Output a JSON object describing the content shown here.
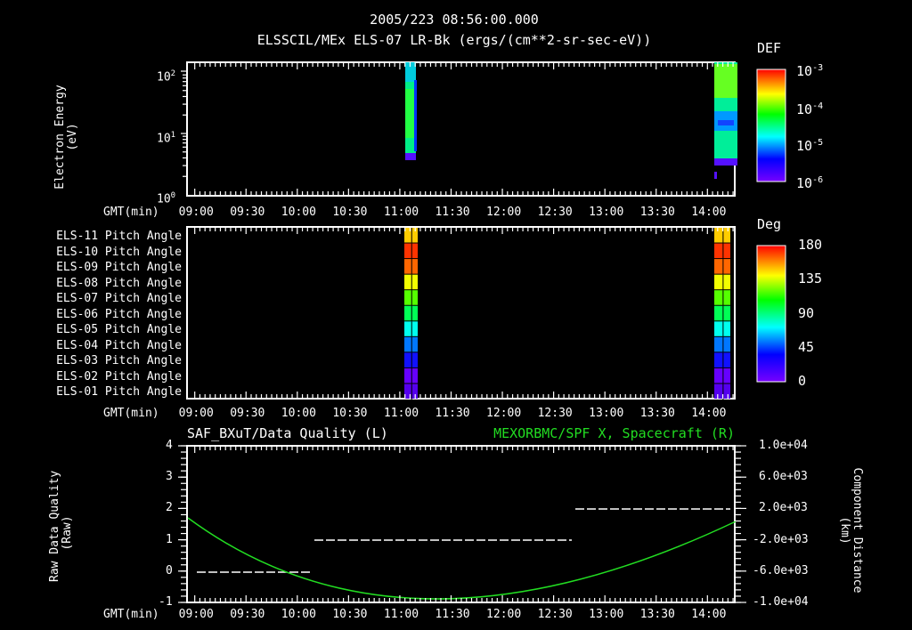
{
  "header": {
    "datetime": "2005/223 08:56:00.000",
    "subtitle": "ELSSCIL/MEx ELS-07 LR-Bk  (ergs/(cm**2-sr-sec-eV))"
  },
  "time_axis": {
    "label": "GMT(min)",
    "ticks": [
      "09:00",
      "09:30",
      "10:00",
      "10:30",
      "11:00",
      "11:30",
      "12:00",
      "12:30",
      "13:00",
      "13:30",
      "14:00"
    ]
  },
  "panel1": {
    "ylabel_line1": "Electron Energy",
    "ylabel_line2": "(eV)",
    "yticks": [
      {
        "base": "10",
        "exp": "2"
      },
      {
        "base": "10",
        "exp": "1"
      },
      {
        "base": "10",
        "exp": "0"
      }
    ],
    "colorbar": {
      "title": "DEF",
      "ticks": [
        {
          "base": "10",
          "exp": "-3"
        },
        {
          "base": "10",
          "exp": "-4"
        },
        {
          "base": "10",
          "exp": "-5"
        },
        {
          "base": "10",
          "exp": "-6"
        }
      ]
    }
  },
  "panel2": {
    "row_labels": [
      "ELS-11 Pitch Angle",
      "ELS-10 Pitch Angle",
      "ELS-09 Pitch Angle",
      "ELS-08 Pitch Angle",
      "ELS-07 Pitch Angle",
      "ELS-06 Pitch Angle",
      "ELS-05 Pitch Angle",
      "ELS-04 Pitch Angle",
      "ELS-03 Pitch Angle",
      "ELS-02 Pitch Angle",
      "ELS-01 Pitch Angle"
    ],
    "row_colors": [
      "#ffcc00",
      "#ff3300",
      "#ff6600",
      "#f2ff00",
      "#55ff00",
      "#00ff55",
      "#00ffee",
      "#0077ff",
      "#1111ff",
      "#6600ff",
      "#5500ee"
    ],
    "colorbar": {
      "title": "Deg",
      "ticks": [
        "180",
        "135",
        "90",
        "45",
        "0"
      ]
    }
  },
  "panel3": {
    "left_title": "SAF_BXuT/Data Quality (L)",
    "right_title": "MEXORBMC/SPF X, Spacecraft (R)",
    "right_title_color": "#22dd22",
    "ylabel_left_line1": "Raw Data Quality",
    "ylabel_left_line2": "(Raw)",
    "yticks_left": [
      "4",
      "3",
      "2",
      "1",
      "0",
      "-1"
    ],
    "ylabel_right_line1": "Component Distance",
    "ylabel_right_line2": "(km)",
    "yticks_right": [
      "1.0e+04",
      "6.0e+03",
      "2.0e+03",
      "-2.0e+03",
      "-6.0e+03",
      "-1.0e+04"
    ]
  },
  "chart_data": [
    {
      "type": "heatmap",
      "title": "ELSSCIL/MEx ELS-07 LR-Bk (ergs/(cm**2-sr-sec-eV))",
      "xlabel": "GMT(min)",
      "ylabel": "Electron Energy (eV)",
      "yscale": "log",
      "ylim": [
        1,
        150
      ],
      "x_range": [
        "08:56",
        "14:16"
      ],
      "colorbar": {
        "label": "DEF",
        "scale": "log",
        "range": [
          1e-06,
          0.001
        ]
      },
      "data_intervals": [
        {
          "start": "11:03",
          "end": "11:09",
          "energy_range_eV": [
            3,
            150
          ],
          "dominant_DEF": 5e-05
        },
        {
          "start": "14:00",
          "end": "14:12",
          "energy_range_eV": [
            3,
            150
          ],
          "dominant_DEF": 0.0001
        }
      ]
    },
    {
      "type": "heatmap",
      "title": "ELS Pitch Angle",
      "xlabel": "GMT(min)",
      "categories": [
        "ELS-11",
        "ELS-10",
        "ELS-09",
        "ELS-08",
        "ELS-07",
        "ELS-06",
        "ELS-05",
        "ELS-04",
        "ELS-03",
        "ELS-02",
        "ELS-01"
      ],
      "colorbar": {
        "label": "Deg",
        "range": [
          0,
          180
        ]
      },
      "data_intervals": [
        {
          "start": "11:03",
          "end": "11:09",
          "values_deg": [
            150,
            170,
            160,
            135,
            110,
            95,
            75,
            55,
            35,
            20,
            15
          ]
        },
        {
          "start": "14:00",
          "end": "14:12",
          "values_deg": [
            150,
            170,
            160,
            135,
            110,
            95,
            75,
            55,
            35,
            20,
            15
          ]
        }
      ]
    },
    {
      "type": "line",
      "title": "SAF_BXuT/Data Quality (L) ; MEXORBMC/SPF X, Spacecraft (R)",
      "xlabel": "GMT(min)",
      "ylabel": "Raw Data Quality (Raw)",
      "ylim": [
        -1,
        4
      ],
      "y2label": "Component Distance (km)",
      "y2lim": [
        -10000,
        10000
      ],
      "series": [
        {
          "name": "Data Quality (L)",
          "axis": "left",
          "color": "#ffffff",
          "style": "dashed",
          "points": [
            [
              "09:01",
              0
            ],
            [
              "10:07",
              0
            ],
            [
              "10:08",
              1
            ],
            [
              "12:40",
              1
            ],
            [
              "12:41",
              2
            ],
            [
              "14:12",
              2
            ]
          ]
        },
        {
          "name": "SPF X Spacecraft (R)",
          "axis": "right",
          "color": "#22dd22",
          "style": "solid",
          "points": [
            [
              "08:56",
              400
            ],
            [
              "09:15",
              -2400
            ],
            [
              "09:30",
              -4300
            ],
            [
              "09:45",
              -5700
            ],
            [
              "10:00",
              -6700
            ],
            [
              "10:15",
              -7400
            ],
            [
              "10:30",
              -7800
            ],
            [
              "10:45",
              -8000
            ],
            [
              "11:00",
              -8100
            ],
            [
              "11:15",
              -8100
            ],
            [
              "11:30",
              -8000
            ],
            [
              "11:45",
              -7800
            ],
            [
              "12:00",
              -7400
            ],
            [
              "12:15",
              -6900
            ],
            [
              "12:30",
              -6200
            ],
            [
              "12:45",
              -5400
            ],
            [
              "13:00",
              -4500
            ],
            [
              "13:15",
              -3500
            ],
            [
              "13:30",
              -2400
            ],
            [
              "13:45",
              -1200
            ],
            [
              "14:00",
              0
            ],
            [
              "14:16",
              400
            ]
          ]
        }
      ]
    }
  ]
}
